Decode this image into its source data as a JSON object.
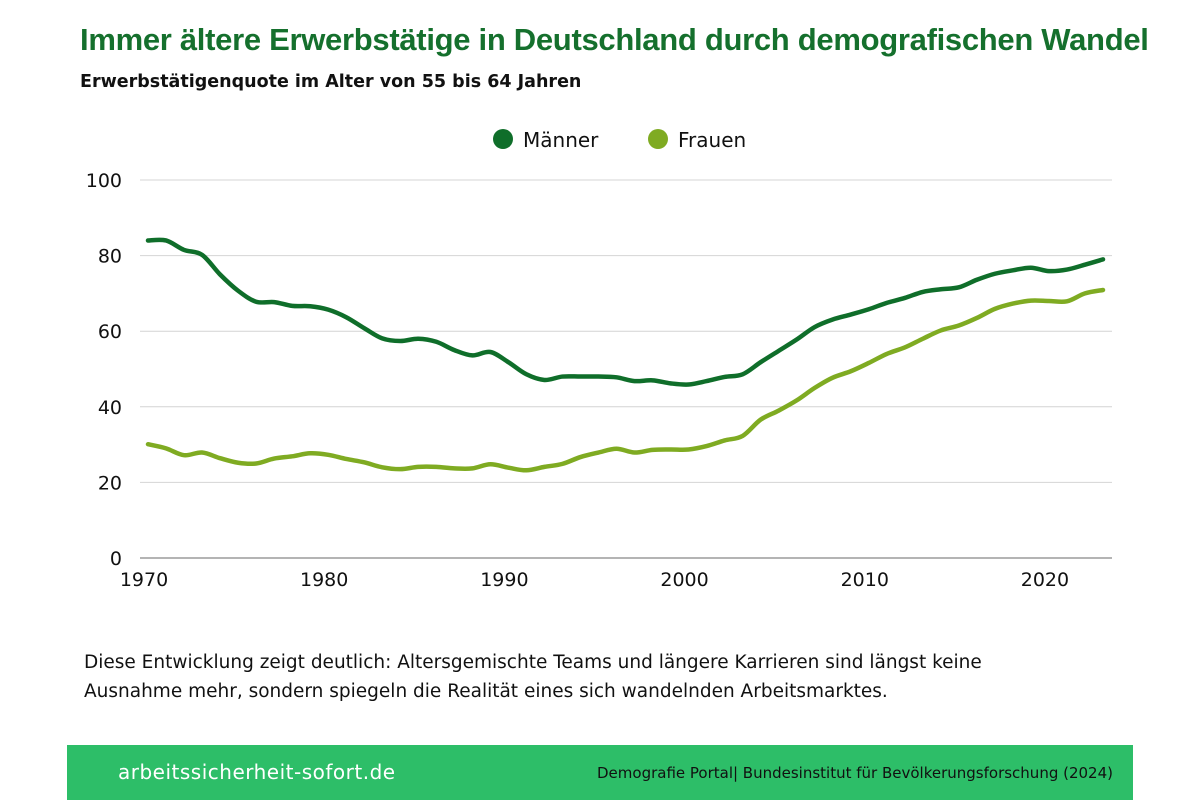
{
  "header": {
    "title": "Immer ältere Erwerbstätige in Deutschland durch demografischen Wandel",
    "subtitle": "Erwerbstätigenquote im Alter von 55 bis 64 Jahren"
  },
  "chart_data": {
    "type": "line",
    "title": "Immer ältere Erwerbstätige in Deutschland durch demografischen Wandel",
    "subtitle": "Erwerbstätigenquote im Alter von 55 bis 64 Jahren",
    "xlabel": "",
    "ylabel": "",
    "xlim": [
      1970,
      2023
    ],
    "ylim": [
      0,
      100
    ],
    "x_ticks": [
      1970,
      1980,
      1990,
      2000,
      2010,
      2020
    ],
    "y_ticks": [
      0,
      20,
      40,
      60,
      80,
      100
    ],
    "grid": "horizontal",
    "legend_position": "top-center",
    "x": [
      1970,
      1971,
      1972,
      1973,
      1974,
      1975,
      1976,
      1977,
      1978,
      1979,
      1980,
      1981,
      1982,
      1983,
      1984,
      1985,
      1986,
      1987,
      1988,
      1989,
      1990,
      1991,
      1992,
      1993,
      1994,
      1995,
      1996,
      1997,
      1998,
      1999,
      2000,
      2001,
      2002,
      2003,
      2004,
      2005,
      2006,
      2007,
      2008,
      2009,
      2010,
      2011,
      2012,
      2013,
      2014,
      2015,
      2016,
      2017,
      2018,
      2019,
      2020,
      2021,
      2022,
      2023
    ],
    "series": [
      {
        "name": "Männer",
        "color": "#0f6e2a",
        "values": [
          84,
          84,
          81.5,
          80.2,
          75,
          70.7,
          67.8,
          67.7,
          66.7,
          66.6,
          65.7,
          63.7,
          60.8,
          58.1,
          57.4,
          58,
          57.2,
          55,
          53.6,
          54.5,
          51.8,
          48.6,
          47.1,
          48,
          48,
          48,
          47.8,
          46.8,
          47,
          46.2,
          45.9,
          46.8,
          47.9,
          48.6,
          51.8,
          54.8,
          57.8,
          61.1,
          63.1,
          64.4,
          65.8,
          67.5,
          68.8,
          70.4,
          71.1,
          71.6,
          73.6,
          75.2,
          76.1,
          76.8,
          75.9,
          76.3,
          77.6,
          79
        ]
      },
      {
        "name": "Frauen",
        "color": "#7fab22",
        "values": [
          30.1,
          29,
          27.2,
          27.9,
          26.4,
          25.2,
          25,
          26.3,
          26.9,
          27.7,
          27.3,
          26.2,
          25.3,
          24,
          23.5,
          24.1,
          24.1,
          23.7,
          23.7,
          24.8,
          23.9,
          23.2,
          24.1,
          24.9,
          26.7,
          27.9,
          28.9,
          27.9,
          28.6,
          28.7,
          28.7,
          29.6,
          31.1,
          32.3,
          36.6,
          39,
          41.7,
          45,
          47.7,
          49.4,
          51.6,
          54,
          55.7,
          58,
          60.2,
          61.5,
          63.5,
          65.9,
          67.3,
          68.1,
          68,
          67.9,
          70,
          70.9
        ]
      }
    ]
  },
  "caption": "Diese Entwicklung zeigt deutlich: Altersgemischte Teams und längere Karrieren sind längst keine Ausnahme mehr, sondern spiegeln die Realität eines sich wandelnden Arbeitsmarktes.",
  "footer": {
    "website": "arbeitssicherheit-sofort.de",
    "source": "Demografie Portal| Bundesinstitut für Bevölkerungsforschung (2024)",
    "background_color": "#2dbe68"
  }
}
